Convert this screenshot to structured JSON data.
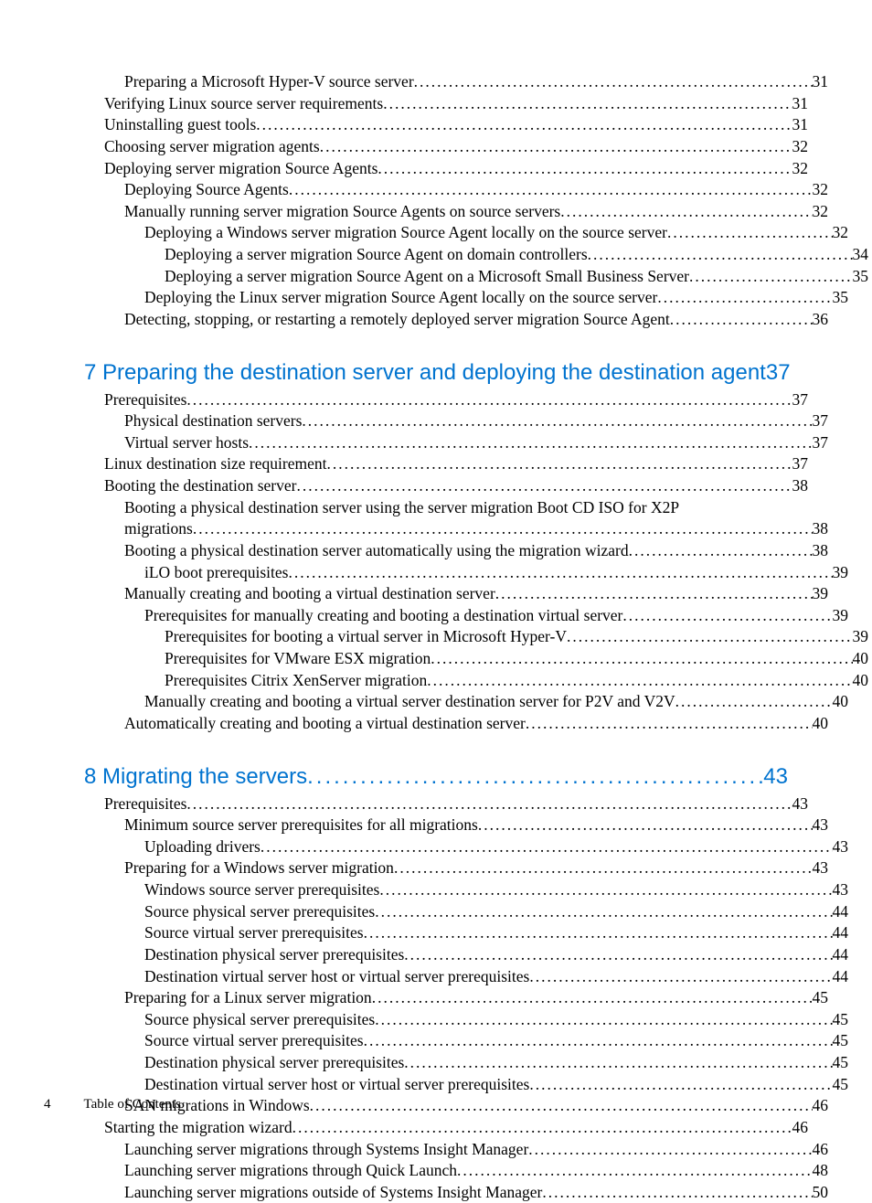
{
  "footer": {
    "page_num": "4",
    "label": "Table of Contents"
  },
  "accent_color": "#0073cf",
  "font_body": "Palatino",
  "font_heading": "Arial",
  "pre_items": [
    {
      "level": 2,
      "text": "Preparing a Microsoft Hyper-V source server",
      "page": "31"
    },
    {
      "level": 1,
      "text": "Verifying Linux source server requirements",
      "page": "31"
    },
    {
      "level": 1,
      "text": "Uninstalling guest tools",
      "page": "31"
    },
    {
      "level": 1,
      "text": "Choosing server migration agents",
      "page": "32"
    },
    {
      "level": 1,
      "text": "Deploying server migration Source Agents",
      "page": "32"
    },
    {
      "level": 2,
      "text": "Deploying Source Agents",
      "page": "32"
    },
    {
      "level": 2,
      "text": "Manually running server migration Source Agents on source servers",
      "page": "32"
    },
    {
      "level": 3,
      "text": "Deploying a Windows server migration Source Agent locally on the source server",
      "page": "32"
    },
    {
      "level": 4,
      "text": "Deploying a server migration Source Agent on domain controllers",
      "page": "34"
    },
    {
      "level": 4,
      "text": "Deploying a server migration Source Agent on a Microsoft Small Business Server",
      "page": "35"
    },
    {
      "level": 3,
      "text": "Deploying the Linux server migration Source Agent locally on the source server",
      "page": "35"
    },
    {
      "level": 2,
      "text": "Detecting, stopping, or restarting a remotely deployed server migration Source Agent",
      "page": "36"
    }
  ],
  "chap7": {
    "title": "7 Preparing the destination server and deploying the destination agent",
    "page": "37"
  },
  "c7_items": [
    {
      "level": 1,
      "text": "Prerequisites",
      "page": "37"
    },
    {
      "level": 2,
      "text": "Physical destination servers",
      "page": "37"
    },
    {
      "level": 2,
      "text": "Virtual server hosts",
      "page": "37"
    },
    {
      "level": 1,
      "text": "Linux destination size requirement",
      "page": "37"
    },
    {
      "level": 1,
      "text": "Booting the destination server",
      "page": "38"
    }
  ],
  "c7_wrap": {
    "level": 2,
    "line1": "Booting a physical destination server using the server migration Boot CD ISO for X2P",
    "line2": "migrations",
    "page": "38"
  },
  "c7_items_b": [
    {
      "level": 2,
      "text": "Booting a physical destination server automatically using the migration wizard",
      "page": "38"
    },
    {
      "level": 3,
      "text": "iLO boot prerequisites",
      "page": "39"
    },
    {
      "level": 2,
      "text": "Manually creating and booting a virtual destination server",
      "page": "39"
    },
    {
      "level": 3,
      "text": "Prerequisites for manually creating and booting a destination virtual server",
      "page": "39"
    },
    {
      "level": 4,
      "text": "Prerequisites for booting a virtual server in Microsoft Hyper-V",
      "page": "39"
    },
    {
      "level": 4,
      "text": "Prerequisites for VMware ESX migration",
      "page": "40"
    },
    {
      "level": 4,
      "text": "Prerequisites Citrix XenServer migration",
      "page": "40"
    },
    {
      "level": 3,
      "text": "Manually creating and booting a virtual server destination server for P2V and V2V",
      "page": "40"
    },
    {
      "level": 2,
      "text": "Automatically creating and booting a virtual destination server",
      "page": "40"
    }
  ],
  "chap8": {
    "title": "8 Migrating the servers",
    "page": "43"
  },
  "c8_items": [
    {
      "level": 1,
      "text": "Prerequisites",
      "page": "43"
    },
    {
      "level": 2,
      "text": "Minimum source server prerequisites for all migrations",
      "page": "43"
    },
    {
      "level": 3,
      "text": "Uploading drivers",
      "page": "43"
    },
    {
      "level": 2,
      "text": "Preparing for a Windows server migration",
      "page": "43"
    },
    {
      "level": 3,
      "text": "Windows source server prerequisites",
      "page": "43"
    },
    {
      "level": 3,
      "text": "Source physical server prerequisites",
      "page": "44"
    },
    {
      "level": 3,
      "text": "Source virtual server prerequisites",
      "page": "44"
    },
    {
      "level": 3,
      "text": "Destination physical server prerequisites",
      "page": "44"
    },
    {
      "level": 3,
      "text": "Destination virtual server host or virtual server prerequisites",
      "page": "44"
    },
    {
      "level": 2,
      "text": "Preparing for a Linux server migration",
      "page": "45"
    },
    {
      "level": 3,
      "text": "Source physical server prerequisites",
      "page": "45"
    },
    {
      "level": 3,
      "text": "Source virtual server prerequisites",
      "page": "45"
    },
    {
      "level": 3,
      "text": "Destination physical server prerequisites",
      "page": "45"
    },
    {
      "level": 3,
      "text": "Destination virtual server host or virtual server prerequisites",
      "page": "45"
    },
    {
      "level": 2,
      "text": "SAN migrations in Windows",
      "page": "46"
    },
    {
      "level": 1,
      "text": "Starting the migration wizard",
      "page": "46"
    },
    {
      "level": 2,
      "text": "Launching server migrations through Systems Insight Manager",
      "page": "46"
    },
    {
      "level": 2,
      "text": "Launching server migrations through Quick Launch",
      "page": "48"
    },
    {
      "level": 2,
      "text": "Launching server migrations outside of Systems Insight Manager",
      "page": "50"
    }
  ]
}
